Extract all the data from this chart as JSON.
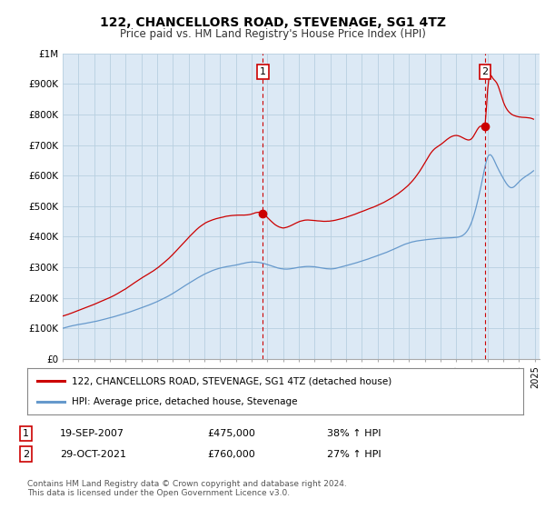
{
  "title": "122, CHANCELLORS ROAD, STEVENAGE, SG1 4TZ",
  "subtitle": "Price paid vs. HM Land Registry's House Price Index (HPI)",
  "background_color": "#ffffff",
  "plot_bg_color": "#dce9f5",
  "grid_color": "#b8cfe0",
  "red_color": "#cc0000",
  "blue_color": "#6699cc",
  "ylim": [
    0,
    1000000
  ],
  "yticks": [
    0,
    100000,
    200000,
    300000,
    400000,
    500000,
    600000,
    700000,
    800000,
    900000,
    1000000
  ],
  "ytick_labels": [
    "£0",
    "£100K",
    "£200K",
    "£300K",
    "£400K",
    "£500K",
    "£600K",
    "£700K",
    "£800K",
    "£900K",
    "£1M"
  ],
  "transaction1_date": "19-SEP-2007",
  "transaction1_price": 475000,
  "transaction1_label": "38% ↑ HPI",
  "transaction2_date": "29-OCT-2021",
  "transaction2_price": 760000,
  "transaction2_label": "27% ↑ HPI",
  "legend_line1": "122, CHANCELLORS ROAD, STEVENAGE, SG1 4TZ (detached house)",
  "legend_line2": "HPI: Average price, detached house, Stevenage",
  "footer": "Contains HM Land Registry data © Crown copyright and database right 2024.\nThis data is licensed under the Open Government Licence v3.0.",
  "marker1_x": 2007.72,
  "marker1_y": 475000,
  "marker2_x": 2021.83,
  "marker2_y": 760000,
  "vline1_x": 2007.72,
  "vline2_x": 2021.83,
  "xlim_left": 1995.0,
  "xlim_right": 2025.3
}
